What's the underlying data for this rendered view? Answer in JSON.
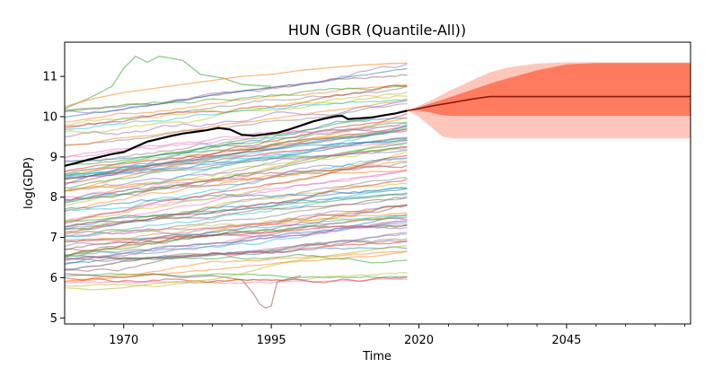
{
  "chart_data": {
    "type": "line",
    "title": "HUN (GBR (Quantile-All))",
    "xlabel": "Time",
    "ylabel": "log(GDP)",
    "xlim": [
      1960,
      2066
    ],
    "ylim": [
      4.85,
      11.85
    ],
    "x_ticks": [
      1970,
      1995,
      2020,
      2045
    ],
    "y_ticks": [
      5,
      6,
      7,
      8,
      9,
      10,
      11
    ],
    "grid": false,
    "legend": "none",
    "colors": {
      "main_series": "#000000",
      "forecast_median": "#8b1a0e",
      "band_inner": "#ff7a5e",
      "band_outer": "#ffc7bc",
      "background_palette": [
        "#1f77b4",
        "#ff7f0e",
        "#2ca02c",
        "#d62728",
        "#9467bd",
        "#8c564b",
        "#e377c2",
        "#7f7f7f",
        "#bcbd22",
        "#17becf"
      ]
    },
    "main_series": {
      "x": [
        1960,
        1962,
        1964,
        1966,
        1968,
        1970,
        1972,
        1974,
        1976,
        1978,
        1980,
        1982,
        1984,
        1986,
        1988,
        1990,
        1992,
        1994,
        1996,
        1998,
        2000,
        2002,
        2004,
        2006,
        2007,
        2008,
        2010,
        2012,
        2014,
        2016,
        2018
      ],
      "y": [
        8.78,
        8.85,
        8.93,
        9.0,
        9.07,
        9.12,
        9.25,
        9.38,
        9.45,
        9.52,
        9.58,
        9.62,
        9.66,
        9.72,
        9.68,
        9.55,
        9.53,
        9.56,
        9.6,
        9.68,
        9.78,
        9.88,
        9.95,
        10.01,
        10.02,
        9.94,
        9.96,
        9.98,
        10.03,
        10.08,
        10.15
      ]
    },
    "forecast": {
      "x": [
        2018,
        2020,
        2022,
        2024,
        2026,
        2028,
        2030,
        2032,
        2035,
        2040,
        2045,
        2050,
        2055,
        2060,
        2066
      ],
      "median": [
        10.15,
        10.2,
        10.26,
        10.31,
        10.36,
        10.41,
        10.46,
        10.5,
        10.5,
        10.5,
        10.5,
        10.5,
        10.5,
        10.5,
        10.5
      ],
      "inner_lower": [
        10.15,
        10.15,
        10.1,
        10.03,
        10.02,
        10.02,
        10.02,
        10.02,
        10.02,
        10.02,
        10.02,
        10.02,
        10.02,
        10.02,
        10.02
      ],
      "inner_upper": [
        10.15,
        10.24,
        10.33,
        10.42,
        10.52,
        10.62,
        10.72,
        10.82,
        10.95,
        11.15,
        11.3,
        11.33,
        11.33,
        11.33,
        11.33
      ],
      "outer_lower": [
        10.15,
        10.0,
        9.75,
        9.5,
        9.46,
        9.46,
        9.46,
        9.46,
        9.46,
        9.46,
        9.46,
        9.46,
        9.46,
        9.46,
        9.46
      ],
      "outer_upper": [
        10.15,
        10.27,
        10.4,
        10.55,
        10.7,
        10.83,
        10.97,
        11.1,
        11.22,
        11.32,
        11.35,
        11.35,
        11.35,
        11.35,
        11.35
      ]
    },
    "background_series": {
      "x_start": 1960,
      "x_end": 2018,
      "notes": "about 90 faint translucent country trajectories",
      "special": [
        {
          "x": [
            1960,
            1964,
            1968,
            1970,
            1972,
            1974,
            1976,
            1978,
            1980,
            1983,
            1987,
            1990,
            1995
          ],
          "y": [
            10.2,
            10.45,
            10.75,
            11.2,
            11.5,
            11.35,
            11.5,
            11.45,
            11.4,
            11.05,
            10.95,
            10.8,
            10.75
          ]
        },
        {
          "x": [
            1960,
            1965,
            1970,
            1975,
            1980,
            1985,
            1990,
            1992,
            1993,
            1994,
            1995,
            1996,
            2000
          ],
          "y": [
            6.1,
            6.05,
            6.0,
            6.1,
            6.0,
            6.05,
            5.95,
            5.6,
            5.35,
            5.25,
            5.3,
            5.9,
            6.05
          ]
        },
        {
          "x": [
            1960,
            1965,
            1970,
            1975,
            1980,
            1985,
            1990,
            1995,
            2000,
            2005,
            2010,
            2018
          ],
          "y": [
            5.75,
            5.7,
            5.75,
            5.85,
            5.9,
            5.95,
            6.1,
            6.3,
            6.45,
            6.55,
            6.65,
            6.8
          ]
        },
        {
          "x": [
            1960,
            1965,
            1970,
            1975,
            1980,
            1985,
            1990,
            1995,
            2000,
            2005,
            2010,
            2015,
            2018
          ],
          "y": [
            10.25,
            10.45,
            10.6,
            10.7,
            10.8,
            10.9,
            11.0,
            11.05,
            11.15,
            11.22,
            11.28,
            11.32,
            11.33
          ]
        }
      ],
      "ranges": [
        {
          "start_low": 5.8,
          "start_high": 6.6,
          "growth_low": 0.0,
          "growth_high": 1.0,
          "count": 14
        },
        {
          "start_low": 6.4,
          "start_high": 7.4,
          "growth_low": 0.2,
          "growth_high": 1.4,
          "count": 24
        },
        {
          "start_low": 7.2,
          "start_high": 8.6,
          "growth_low": 0.5,
          "growth_high": 1.8,
          "count": 26
        },
        {
          "start_low": 8.4,
          "start_high": 10.2,
          "growth_low": 0.6,
          "growth_high": 1.3,
          "count": 26
        }
      ]
    }
  }
}
